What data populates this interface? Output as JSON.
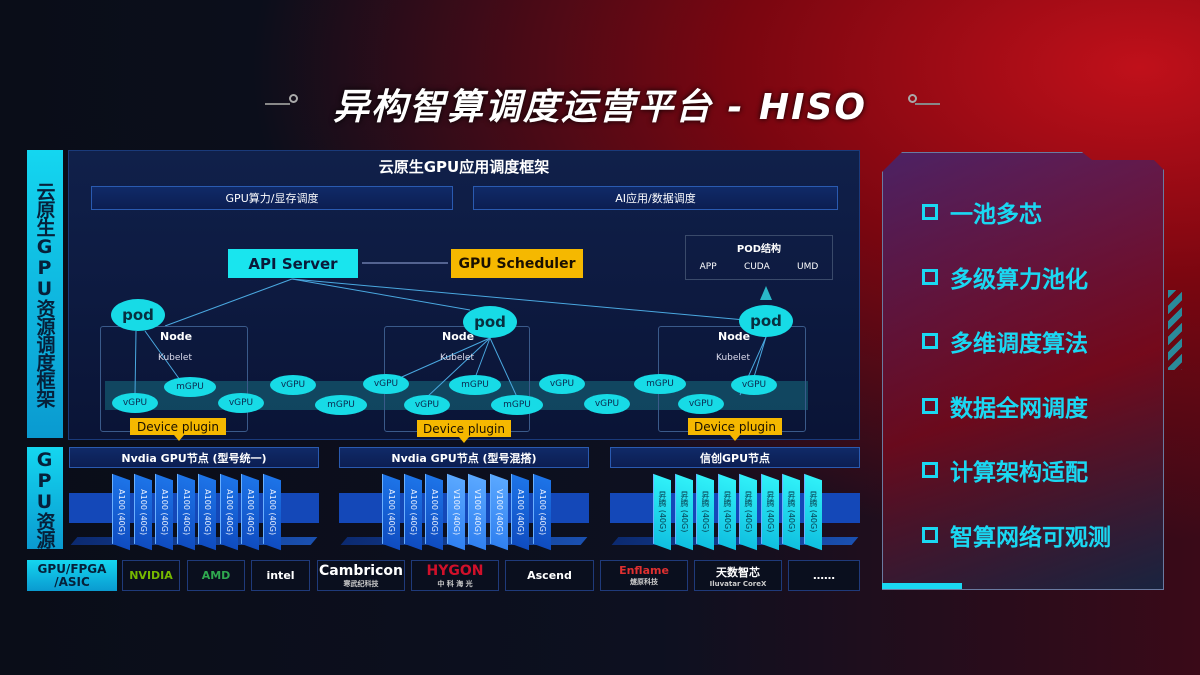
{
  "title": "异构智算调度运营平台 - HISO",
  "left_labels": {
    "framework": "云原生GPU资源调度框架",
    "resources": "GPU资源",
    "hw": "GPU/FPGA /ASIC"
  },
  "framework": {
    "header": "云原生GPU应用调度框架",
    "sub": [
      "GPU算力/显存调度",
      "AI应用/数据调度"
    ],
    "api_server": "API Server",
    "gpu_scheduler": "GPU Scheduler",
    "pod_struct": {
      "title": "POD结构",
      "items": [
        "APP",
        "CUDA",
        "UMD"
      ]
    },
    "pod": "pod",
    "node": "Node",
    "kubelet": "Kubelet",
    "device_plugin": "Device plugin",
    "gpus": [
      "vGPU",
      "mGPU",
      "vGPU",
      "vGPU",
      "mGPU",
      "vGPU",
      "vGPU",
      "mGPU",
      "mGPU",
      "vGPU",
      "vGPU",
      "mGPU",
      "vGPU",
      "vGPU"
    ]
  },
  "gpu_nodes": [
    {
      "title": "Nvdia GPU节点 (型号统一)",
      "chips": [
        "A100 (40G)",
        "A100 (40G)",
        "A100 (40G)",
        "A100 (40G)",
        "A100 (40G)",
        "A100 (40G)",
        "A100 (40G)",
        "A100 (40G)"
      ]
    },
    {
      "title": "Nvdia GPU节点 (型号混搭)",
      "chips": [
        "A100 (40G)",
        "A100 (40G)",
        "A100 (40G)",
        "V100 (40G)",
        "V100 (40G)",
        "V100 (40G)",
        "A100 (40G)",
        "A100 (40G)"
      ]
    },
    {
      "title": "信创GPU节点",
      "chips": [
        "昇腾 (40G)",
        "昇腾 (40G)",
        "昇腾 (40G)",
        "昇腾 (40G)",
        "昇腾 (40G)",
        "昇腾 (40G)",
        "昇腾 (40G)",
        "昇腾 (40G)"
      ]
    }
  ],
  "vendors": [
    {
      "name": "NVIDIA",
      "color": "#76b900"
    },
    {
      "name": "AMD",
      "color": "#2fa84f"
    },
    {
      "name": "intel",
      "color": "#ffffff"
    },
    {
      "name": "Cambricon",
      "sub": "寒武纪科技",
      "color": "#ffffff"
    },
    {
      "name": "HYGON",
      "sub": "中 科 海 光",
      "color": "#d0102a"
    },
    {
      "name": "Ascend",
      "color": "#ffffff"
    },
    {
      "name": "Enflame",
      "sub": "燧原科技",
      "color": "#e03030"
    },
    {
      "name": "天数智芯",
      "sub": "Iluvatar CoreX",
      "color": "#ffffff"
    },
    {
      "name": "……",
      "color": "#ffffff"
    }
  ],
  "features": [
    "一池多芯",
    "多级算力池化",
    "多维调度算法",
    "数据全网调度",
    "计算架构适配",
    "智算网络可观测"
  ]
}
